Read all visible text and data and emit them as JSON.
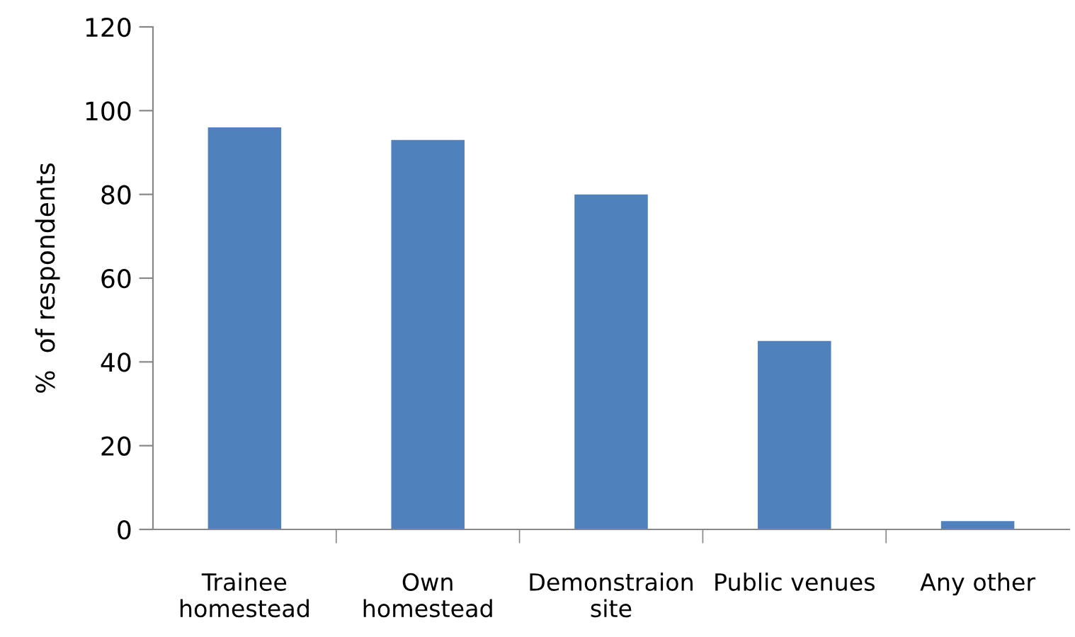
{
  "chart_data": {
    "type": "bar",
    "ylabel": "%  of respondents",
    "categories": [
      "Trainee\nhomestead",
      "Own\nhomestead",
      "Demonstraion\nsite",
      "Public venues",
      "Any other"
    ],
    "values": [
      96,
      93,
      80,
      45,
      2
    ],
    "color": "#4f81bd",
    "ylim": [
      0,
      120
    ],
    "yticks": [
      0,
      20,
      40,
      60,
      80,
      100,
      120
    ],
    "grid": false
  }
}
